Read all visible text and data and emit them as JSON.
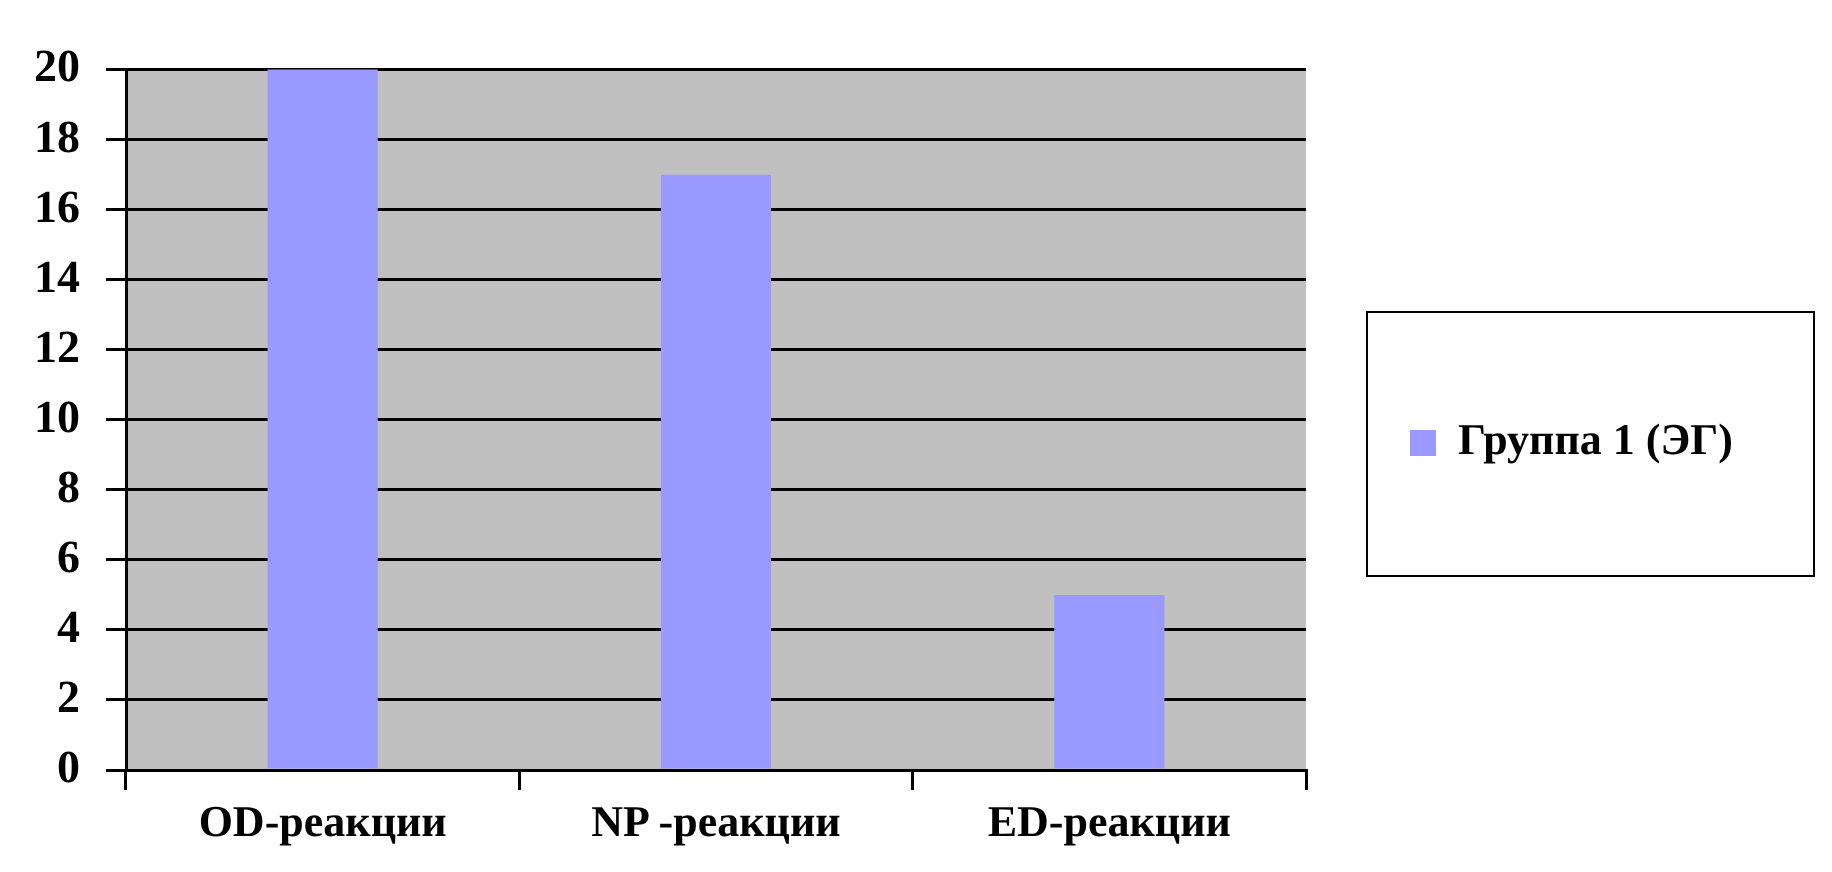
{
  "chart_data": {
    "type": "bar",
    "categories": [
      "OD-реакции",
      "NP -реакции",
      "ED-реакции"
    ],
    "series": [
      {
        "name": "Группа 1 (ЭГ)",
        "color": "#9999ff",
        "values": [
          20,
          17,
          5
        ]
      }
    ],
    "ylim": [
      0,
      20
    ],
    "yticks": [
      0,
      2,
      4,
      6,
      8,
      10,
      12,
      14,
      16,
      18,
      20
    ],
    "grid": "y",
    "legend": "right"
  }
}
